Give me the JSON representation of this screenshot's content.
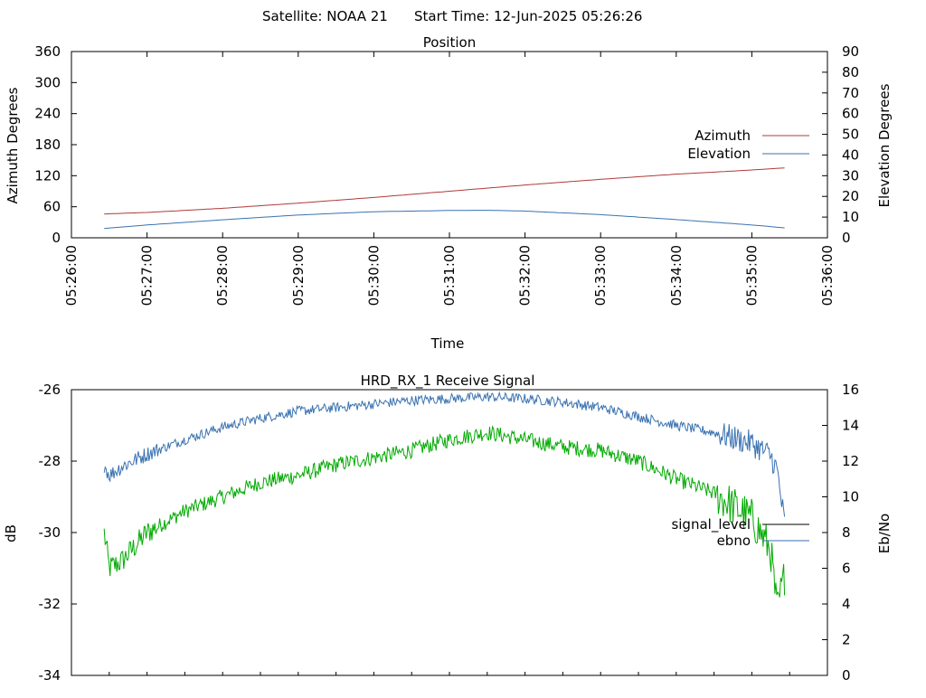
{
  "header": {
    "satellite_text": "Satellite: NOAA 21",
    "start_time_text": "Start Time: 12-Jun-2025 05:26:26"
  },
  "chart_data": [
    {
      "type": "line",
      "title": "Position",
      "xlabel": "Time",
      "ylabel": "Azimuth Degrees",
      "y2label": "Elevation Degrees",
      "xlim": [
        "05:26:00",
        "05:36:00"
      ],
      "ylim": [
        0,
        360
      ],
      "y2lim": [
        0,
        90
      ],
      "x_tick_labels": [
        "05:26:00",
        "05:27:00",
        "05:28:00",
        "05:29:00",
        "05:30:00",
        "05:31:00",
        "05:32:00",
        "05:33:00",
        "05:34:00",
        "05:35:00",
        "05:36:00"
      ],
      "y_tick_labels": [
        "0",
        "60",
        "120",
        "180",
        "240",
        "300",
        "360"
      ],
      "y2_tick_labels": [
        "0",
        "10",
        "20",
        "30",
        "40",
        "50",
        "60",
        "70",
        "80",
        "90"
      ],
      "legend_position": "right",
      "grid": false,
      "series": [
        {
          "name": "Azimuth",
          "axis": "left",
          "color": "#b03a3a",
          "x": [
            "05:26:26",
            "05:27:00",
            "05:28:00",
            "05:29:00",
            "05:30:00",
            "05:31:00",
            "05:32:00",
            "05:33:00",
            "05:34:00",
            "05:35:00",
            "05:35:26"
          ],
          "values": [
            46,
            49,
            57,
            67,
            78,
            90,
            102,
            113,
            123,
            131,
            135
          ]
        },
        {
          "name": "Elevation",
          "axis": "right",
          "color": "#3a72b0",
          "x": [
            "05:26:26",
            "05:27:00",
            "05:28:00",
            "05:29:00",
            "05:30:00",
            "05:31:00",
            "05:31:30",
            "05:32:00",
            "05:33:00",
            "05:34:00",
            "05:35:00",
            "05:35:26"
          ],
          "values": [
            4.5,
            6.2,
            8.7,
            11.0,
            12.6,
            13.2,
            13.3,
            12.9,
            11.2,
            8.8,
            6.2,
            4.8
          ]
        }
      ]
    },
    {
      "type": "line",
      "title": "HRD_RX_1 Receive Signal",
      "xlabel": "",
      "ylabel": "dB",
      "y2label": "Eb/No",
      "xlim": [
        "05:26:00",
        "05:36:00"
      ],
      "ylim": [
        -34,
        -26
      ],
      "y2lim": [
        0,
        16
      ],
      "y_tick_labels": [
        "-34",
        "-32",
        "-30",
        "-28",
        "-26"
      ],
      "y2_tick_labels": [
        "0",
        "2",
        "4",
        "6",
        "8",
        "10",
        "12",
        "14",
        "16"
      ],
      "legend_position": "right",
      "grid": false,
      "series": [
        {
          "name": "signal_level",
          "axis": "left",
          "color": "#00aa00",
          "legend_color": "#000000",
          "x": [
            "05:26:26",
            "05:26:30",
            "05:26:40",
            "05:27:00",
            "05:27:30",
            "05:28:00",
            "05:28:30",
            "05:29:00",
            "05:29:30",
            "05:30:00",
            "05:30:30",
            "05:31:00",
            "05:31:30",
            "05:32:00",
            "05:32:30",
            "05:33:00",
            "05:33:30",
            "05:34:00",
            "05:34:30",
            "05:35:00",
            "05:35:15",
            "05:35:20",
            "05:35:26"
          ],
          "values": [
            -30.0,
            -31.0,
            -30.8,
            -30.0,
            -29.4,
            -29.0,
            -28.6,
            -28.4,
            -28.1,
            -27.9,
            -27.7,
            -27.4,
            -27.2,
            -27.4,
            -27.6,
            -27.7,
            -28.0,
            -28.5,
            -28.9,
            -29.6,
            -30.5,
            -32.2,
            -31.2
          ]
        },
        {
          "name": "ebno",
          "axis": "right",
          "color": "#3a72b0",
          "x": [
            "05:26:26",
            "05:26:30",
            "05:26:40",
            "05:27:00",
            "05:27:30",
            "05:28:00",
            "05:28:30",
            "05:29:00",
            "05:29:30",
            "05:30:00",
            "05:30:30",
            "05:31:00",
            "05:31:30",
            "05:32:00",
            "05:32:30",
            "05:33:00",
            "05:33:30",
            "05:34:00",
            "05:34:30",
            "05:35:00",
            "05:35:15",
            "05:35:20",
            "05:35:26"
          ],
          "values": [
            11.8,
            11.2,
            11.7,
            12.4,
            13.2,
            13.9,
            14.4,
            14.8,
            15.0,
            15.2,
            15.4,
            15.5,
            15.6,
            15.5,
            15.3,
            15.0,
            14.5,
            14.0,
            13.6,
            13.0,
            12.3,
            11.5,
            8.5
          ]
        }
      ]
    }
  ]
}
